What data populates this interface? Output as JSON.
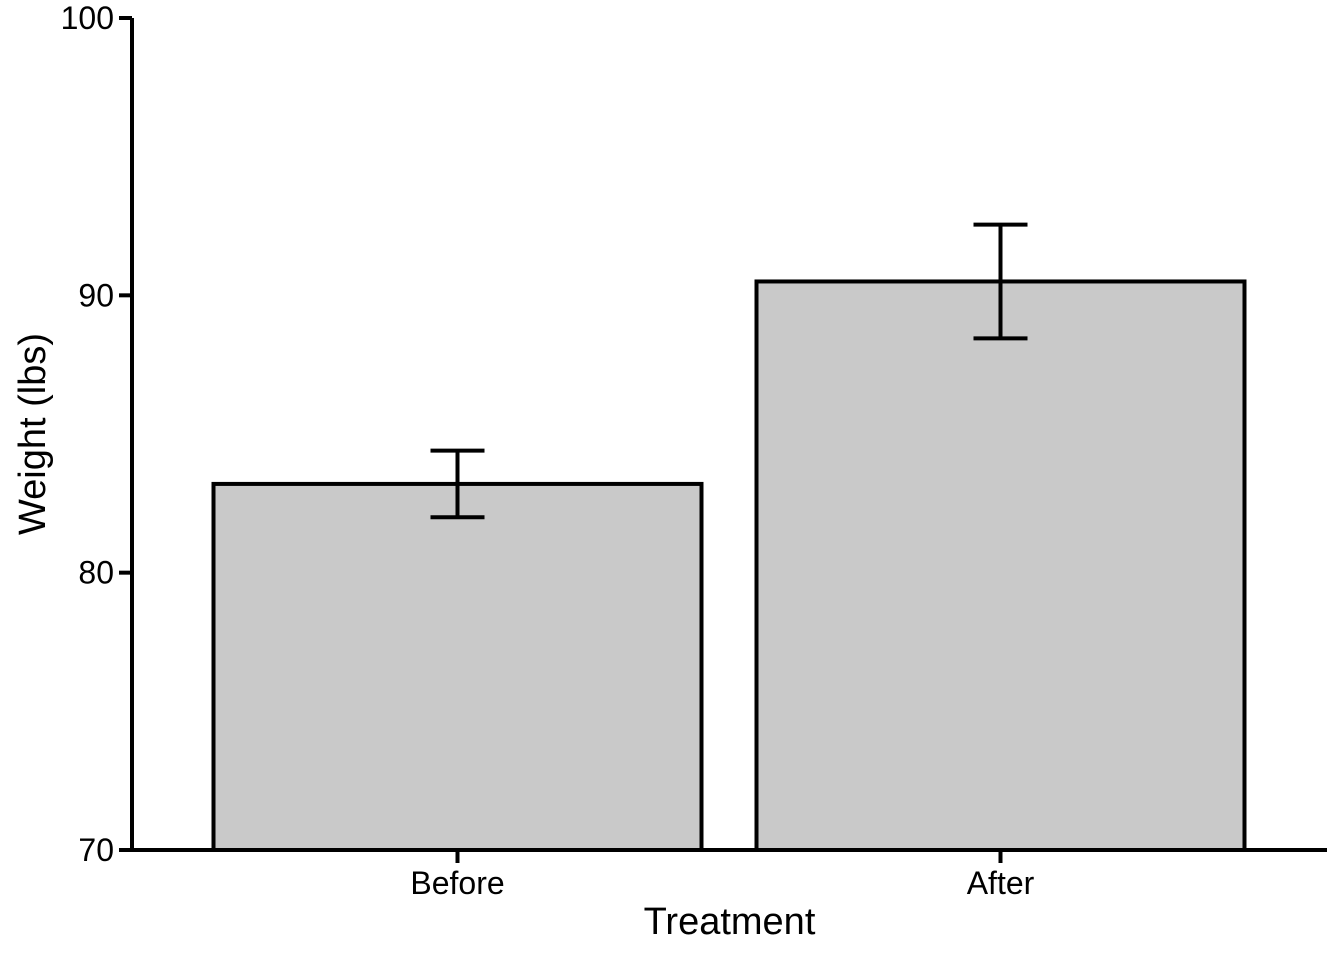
{
  "page": {
    "background_color": "#ffffff"
  },
  "chart_data": {
    "type": "bar",
    "title": "",
    "xlabel": "Treatment",
    "ylabel": "Weight (lbs)",
    "categories": [
      "Before",
      "After"
    ],
    "series": [
      {
        "name": "Weight",
        "values": [
          83.2,
          90.5
        ],
        "errors": [
          1.2,
          2.05
        ]
      }
    ],
    "ylim": [
      70,
      100
    ],
    "yticks": [
      70,
      80,
      90,
      100
    ],
    "ytick_labels": [
      "70",
      "80",
      "90",
      "100"
    ],
    "grid": false,
    "legend_position": "none",
    "error_bar_caps": true,
    "bar_fill": "#c9c9c9",
    "bar_stroke": "#000000",
    "axis_color": "#000000",
    "text_color": "#000000"
  }
}
